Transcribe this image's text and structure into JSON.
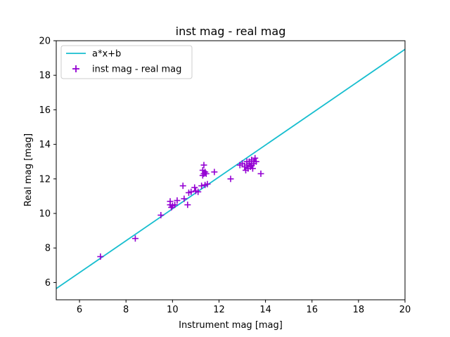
{
  "chart_data": {
    "type": "scatter",
    "title": "inst mag - real mag",
    "xlabel": "Instrument mag [mag]",
    "ylabel": "Real mag [mag]",
    "xlim": [
      5,
      20
    ],
    "ylim": [
      5,
      20
    ],
    "xticks": [
      "6",
      "8",
      "10",
      "12",
      "14",
      "16",
      "18",
      "20"
    ],
    "yticks": [
      "6",
      "8",
      "10",
      "12",
      "14",
      "16",
      "18",
      "20"
    ],
    "grid": false,
    "legend": {
      "placement": "top-left",
      "entries": [
        "a*x+b",
        "inst mag - real mag"
      ]
    },
    "series": [
      {
        "name": "a*x+b",
        "kind": "line",
        "color": "#17becf",
        "x": [
          5,
          20
        ],
        "y": [
          5.65,
          19.5
        ]
      },
      {
        "name": "inst mag - real mag",
        "kind": "scatter",
        "marker": "plus",
        "color": "#9400d3",
        "x": [
          6.9,
          8.4,
          9.5,
          9.9,
          9.9,
          9.95,
          10.0,
          10.1,
          10.2,
          10.45,
          10.5,
          10.65,
          10.7,
          10.8,
          10.95,
          11.0,
          11.1,
          11.25,
          11.3,
          11.3,
          11.35,
          11.35,
          11.4,
          11.4,
          11.45,
          11.5,
          11.8,
          12.5,
          12.9,
          13.0,
          13.1,
          13.15,
          13.2,
          13.2,
          13.25,
          13.3,
          13.3,
          13.35,
          13.4,
          13.4,
          13.45,
          13.5,
          13.5,
          13.55,
          13.6,
          13.8
        ],
        "y": [
          7.5,
          8.55,
          9.9,
          10.5,
          10.7,
          10.35,
          10.45,
          10.5,
          10.75,
          11.6,
          10.85,
          10.5,
          11.2,
          11.25,
          11.5,
          11.3,
          11.25,
          11.6,
          12.2,
          12.5,
          12.3,
          12.8,
          12.4,
          11.65,
          12.3,
          11.7,
          12.4,
          12.0,
          12.8,
          12.9,
          12.7,
          12.5,
          12.8,
          13.0,
          12.6,
          12.9,
          13.0,
          12.7,
          13.1,
          12.8,
          12.6,
          13.0,
          12.9,
          13.2,
          13.0,
          12.3
        ]
      }
    ]
  }
}
